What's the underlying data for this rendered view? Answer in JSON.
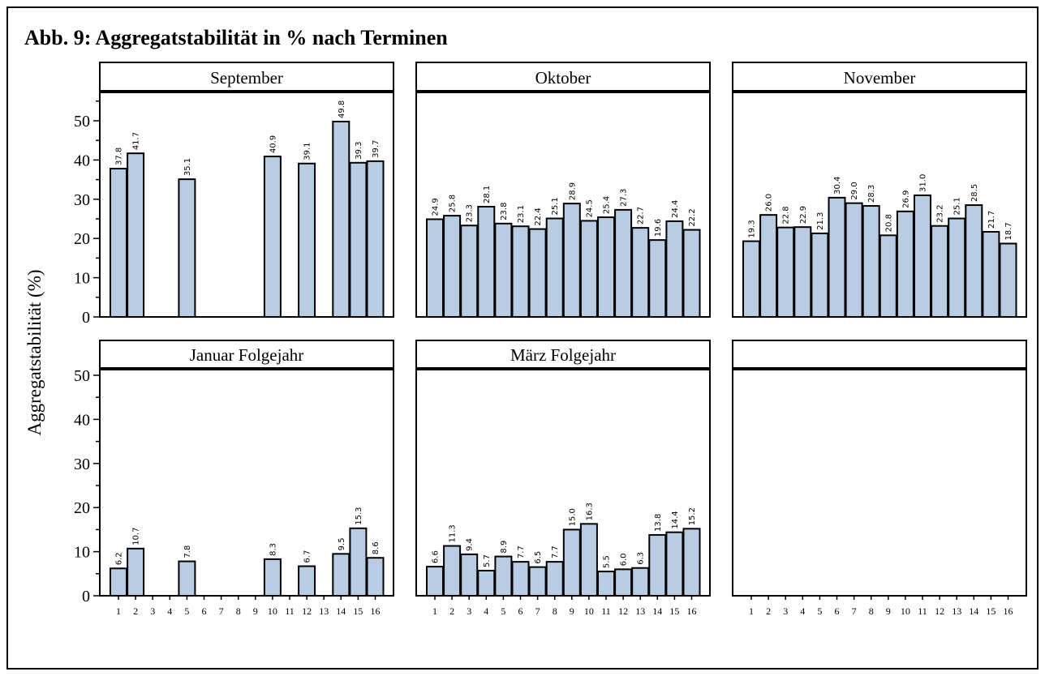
{
  "title": "Abb. 9: Aggregatstabilität in % nach Terminen",
  "chart_data": {
    "type": "bar",
    "title": "Abb. 9: Aggregatstabilität in % nach Terminen",
    "ylabel": "Aggregatstabilität (%)",
    "xlabel": "",
    "ylim": [
      0,
      57
    ],
    "yticks": [
      0,
      10,
      20,
      30,
      40,
      50
    ],
    "categories": [
      "1",
      "2",
      "3",
      "4",
      "5",
      "6",
      "7",
      "8",
      "9",
      "10",
      "11",
      "12",
      "13",
      "14",
      "15",
      "16"
    ],
    "colors": {
      "bar_fill": "#b8cce4",
      "bar_stroke": "#000000"
    },
    "grid": false,
    "panels": [
      {
        "name": "September",
        "values": [
          37.8,
          41.7,
          null,
          null,
          35.1,
          null,
          null,
          null,
          null,
          40.9,
          null,
          39.1,
          null,
          49.8,
          39.3,
          39.7
        ],
        "labels": [
          "37.8",
          "41.7",
          null,
          null,
          "35.1",
          null,
          null,
          null,
          null,
          "40.9",
          null,
          "39.1",
          null,
          "49.8",
          "39.3",
          "39.7"
        ]
      },
      {
        "name": "Oktober",
        "values": [
          24.9,
          25.8,
          23.3,
          28.1,
          23.8,
          23.1,
          22.4,
          25.1,
          28.9,
          24.5,
          25.4,
          27.3,
          22.7,
          19.6,
          24.4,
          22.2
        ],
        "labels": [
          "24.9",
          "25.8",
          "23.3",
          "28.1",
          "23.8",
          "23.1",
          "22.4",
          "25.1",
          "28.9",
          "24.5",
          "25.4",
          "27.3",
          "22.7",
          "19.6",
          "24.4",
          "22.2"
        ]
      },
      {
        "name": "November",
        "values": [
          19.3,
          26.0,
          22.8,
          22.9,
          21.3,
          30.4,
          29.0,
          28.3,
          20.8,
          26.9,
          31.0,
          23.2,
          25.1,
          28.5,
          21.7,
          18.7
        ],
        "labels": [
          "19.3",
          "26.0",
          "22.8",
          "22.9",
          "21.3",
          "30.4",
          "29.0",
          "28.3",
          "20.8",
          "26.9",
          "31.0",
          "23.2",
          "25.1",
          "28.5",
          "21.7",
          "18.7"
        ]
      },
      {
        "name": "Januar Folgejahr",
        "values": [
          6.2,
          10.7,
          null,
          null,
          7.8,
          null,
          null,
          null,
          null,
          8.3,
          null,
          6.7,
          null,
          9.5,
          15.3,
          8.6
        ],
        "labels": [
          "6.2",
          "10.7",
          null,
          null,
          "7.8",
          null,
          null,
          null,
          null,
          "8.3",
          null,
          "6.7",
          null,
          "9.5",
          "15.3",
          "8.6"
        ]
      },
      {
        "name": "März Folgejahr",
        "values": [
          6.6,
          11.3,
          9.4,
          5.7,
          8.9,
          7.7,
          6.5,
          7.7,
          15.0,
          16.3,
          5.5,
          6.0,
          6.3,
          13.8,
          14.4,
          15.2
        ],
        "labels": [
          "6.6",
          "11.3",
          "9.4",
          "5.7",
          "8.9",
          "7.7",
          "6.5",
          "7.7",
          "15.0",
          "16.3",
          "5.5",
          "6.0",
          "6.3",
          "13.8",
          "14.4",
          "15.2"
        ]
      },
      {
        "name": "",
        "values": [],
        "labels": []
      }
    ]
  }
}
